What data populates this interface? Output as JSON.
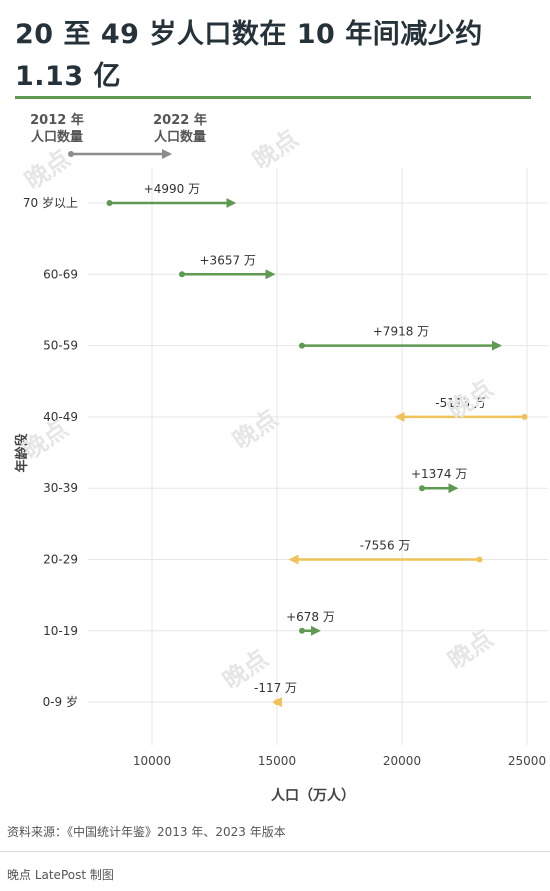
{
  "title": "20 至 49 岁人口数在 10 年间减少约 1.13 亿",
  "legend": {
    "start_label": "2012 年\n人口数量",
    "end_label": "2022 年\n人口数量"
  },
  "source": "资料来源：《中国统计年鉴》2013 年、2023 年版本",
  "credit": "晚点 LatePost 制图",
  "watermark": "晚点",
  "colors": {
    "increase": "#5f9a52",
    "decrease": "#efc25a",
    "legend": "#8c8c8c",
    "grid": "#e6e6e6",
    "title_rule": "#5f9a52"
  },
  "chart_data": {
    "type": "arrow-dumbbell",
    "xlabel": "人口（万人）",
    "ylabel": "年龄段",
    "xlim": [
      7000,
      26000
    ],
    "xticks": [
      10000,
      15000,
      20000,
      25000
    ],
    "grid": true,
    "categories": [
      "70 岁以上",
      "60-69",
      "50-59",
      "40-49",
      "30-39",
      "20-29",
      "10-19",
      "0-9 岁"
    ],
    "series": [
      {
        "start": 8300,
        "end": 13290,
        "label": "+4990 万"
      },
      {
        "start": 11200,
        "end": 14857,
        "label": "+3657 万"
      },
      {
        "start": 16000,
        "end": 23918,
        "label": "+7918 万"
      },
      {
        "start": 24900,
        "end": 19787,
        "label": "-5113 万"
      },
      {
        "start": 20800,
        "end": 22174,
        "label": "+1374 万"
      },
      {
        "start": 23100,
        "end": 15544,
        "label": "-7556 万"
      },
      {
        "start": 16000,
        "end": 16678,
        "label": "+678 万"
      },
      {
        "start": 15000,
        "end": 14883,
        "label": "-117 万"
      }
    ]
  }
}
